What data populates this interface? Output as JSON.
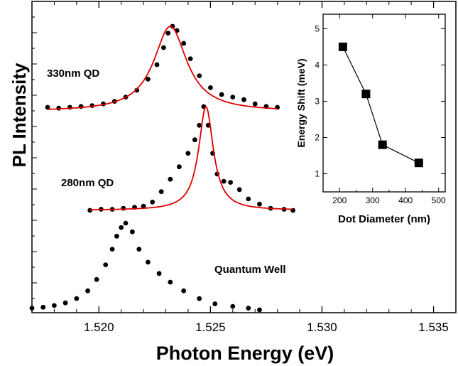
{
  "chart_data": [
    {
      "type": "scatter",
      "xlabel": "Photon Energy (eV)",
      "ylabel": "PL Intensity",
      "xlim": [
        1.517,
        1.536
      ],
      "y_tick_labels": "none",
      "x_ticks": [
        "1.520",
        "1.525",
        "1.530",
        "1.535"
      ],
      "x_tick_values": [
        1.52,
        1.525,
        1.53,
        1.535
      ],
      "series": [
        {
          "name": "330nm QD",
          "color": "#000000",
          "fit_color": "#e00000",
          "points": [
            [
              1.5177,
              0.05
            ],
            [
              1.5182,
              0.04
            ],
            [
              1.5187,
              0.05
            ],
            [
              1.5192,
              0.06
            ],
            [
              1.5197,
              0.07
            ],
            [
              1.5202,
              0.09
            ],
            [
              1.5207,
              0.12
            ],
            [
              1.5212,
              0.17
            ],
            [
              1.5217,
              0.25
            ],
            [
              1.5222,
              0.38
            ],
            [
              1.5226,
              0.55
            ],
            [
              1.5229,
              0.75
            ],
            [
              1.5231,
              0.92
            ],
            [
              1.5233,
              1.0
            ],
            [
              1.5235,
              0.95
            ],
            [
              1.5238,
              0.8
            ],
            [
              1.5241,
              0.62
            ],
            [
              1.5245,
              0.42
            ],
            [
              1.525,
              0.28
            ],
            [
              1.5255,
              0.2
            ],
            [
              1.526,
              0.17
            ],
            [
              1.5265,
              0.14
            ],
            [
              1.527,
              0.09
            ],
            [
              1.5275,
              0.06
            ],
            [
              1.528,
              0.05
            ]
          ],
          "fit": {
            "center": 1.5232,
            "fwhm": 0.0018,
            "height": 1.0,
            "x_range": [
              1.5177,
              1.528
            ]
          }
        },
        {
          "name": "280nm QD",
          "color": "#000000",
          "fit_color": "#e00000",
          "points": [
            [
              1.5196,
              0.0
            ],
            [
              1.5201,
              0.01
            ],
            [
              1.5206,
              0.01
            ],
            [
              1.5211,
              0.02
            ],
            [
              1.5216,
              0.03
            ],
            [
              1.522,
              0.04
            ],
            [
              1.5224,
              0.08
            ],
            [
              1.5228,
              0.18
            ],
            [
              1.5232,
              0.3
            ],
            [
              1.5236,
              0.42
            ],
            [
              1.524,
              0.55
            ],
            [
              1.5243,
              0.68
            ],
            [
              1.5245,
              0.82
            ],
            [
              1.5247,
              1.0
            ],
            [
              1.5249,
              0.82
            ],
            [
              1.5251,
              0.55
            ],
            [
              1.5253,
              0.35
            ],
            [
              1.5256,
              0.28
            ],
            [
              1.5259,
              0.27
            ],
            [
              1.5263,
              0.2
            ],
            [
              1.5267,
              0.11
            ],
            [
              1.5272,
              0.06
            ],
            [
              1.5277,
              0.02
            ],
            [
              1.5283,
              0.01
            ],
            [
              1.5287,
              0.0
            ]
          ],
          "fit": {
            "center": 1.5248,
            "fwhm": 0.0008,
            "height": 1.0,
            "x_range": [
              1.5196,
              1.5287
            ]
          }
        },
        {
          "name": "Quantum Well",
          "color": "#000000",
          "points": [
            [
              1.517,
              0.02
            ],
            [
              1.5175,
              0.03
            ],
            [
              1.518,
              0.05
            ],
            [
              1.5185,
              0.08
            ],
            [
              1.519,
              0.13
            ],
            [
              1.5195,
              0.22
            ],
            [
              1.5199,
              0.35
            ],
            [
              1.5203,
              0.52
            ],
            [
              1.5206,
              0.7
            ],
            [
              1.5208,
              0.85
            ],
            [
              1.521,
              0.95
            ],
            [
              1.5212,
              1.0
            ],
            [
              1.5215,
              0.9
            ],
            [
              1.5218,
              0.7
            ],
            [
              1.5222,
              0.55
            ],
            [
              1.5227,
              0.42
            ],
            [
              1.5232,
              0.32
            ],
            [
              1.5238,
              0.22
            ],
            [
              1.5245,
              0.13
            ],
            [
              1.5252,
              0.07
            ],
            [
              1.526,
              0.04
            ],
            [
              1.5267,
              0.02
            ],
            [
              1.5272,
              0.0
            ]
          ]
        }
      ]
    },
    {
      "type": "line",
      "xlabel": "Dot Diameter (nm)",
      "ylabel": "Energy Shift (meV)",
      "xlim": [
        150,
        520
      ],
      "ylim": [
        0.5,
        5.4
      ],
      "x_ticks": [
        200,
        300,
        400,
        500
      ],
      "y_ticks": [
        1,
        2,
        3,
        4,
        5
      ],
      "marker": "square",
      "series": [
        {
          "x": [
            210,
            280,
            330,
            440
          ],
          "y": [
            4.5,
            3.2,
            1.8,
            1.3
          ]
        }
      ]
    }
  ]
}
